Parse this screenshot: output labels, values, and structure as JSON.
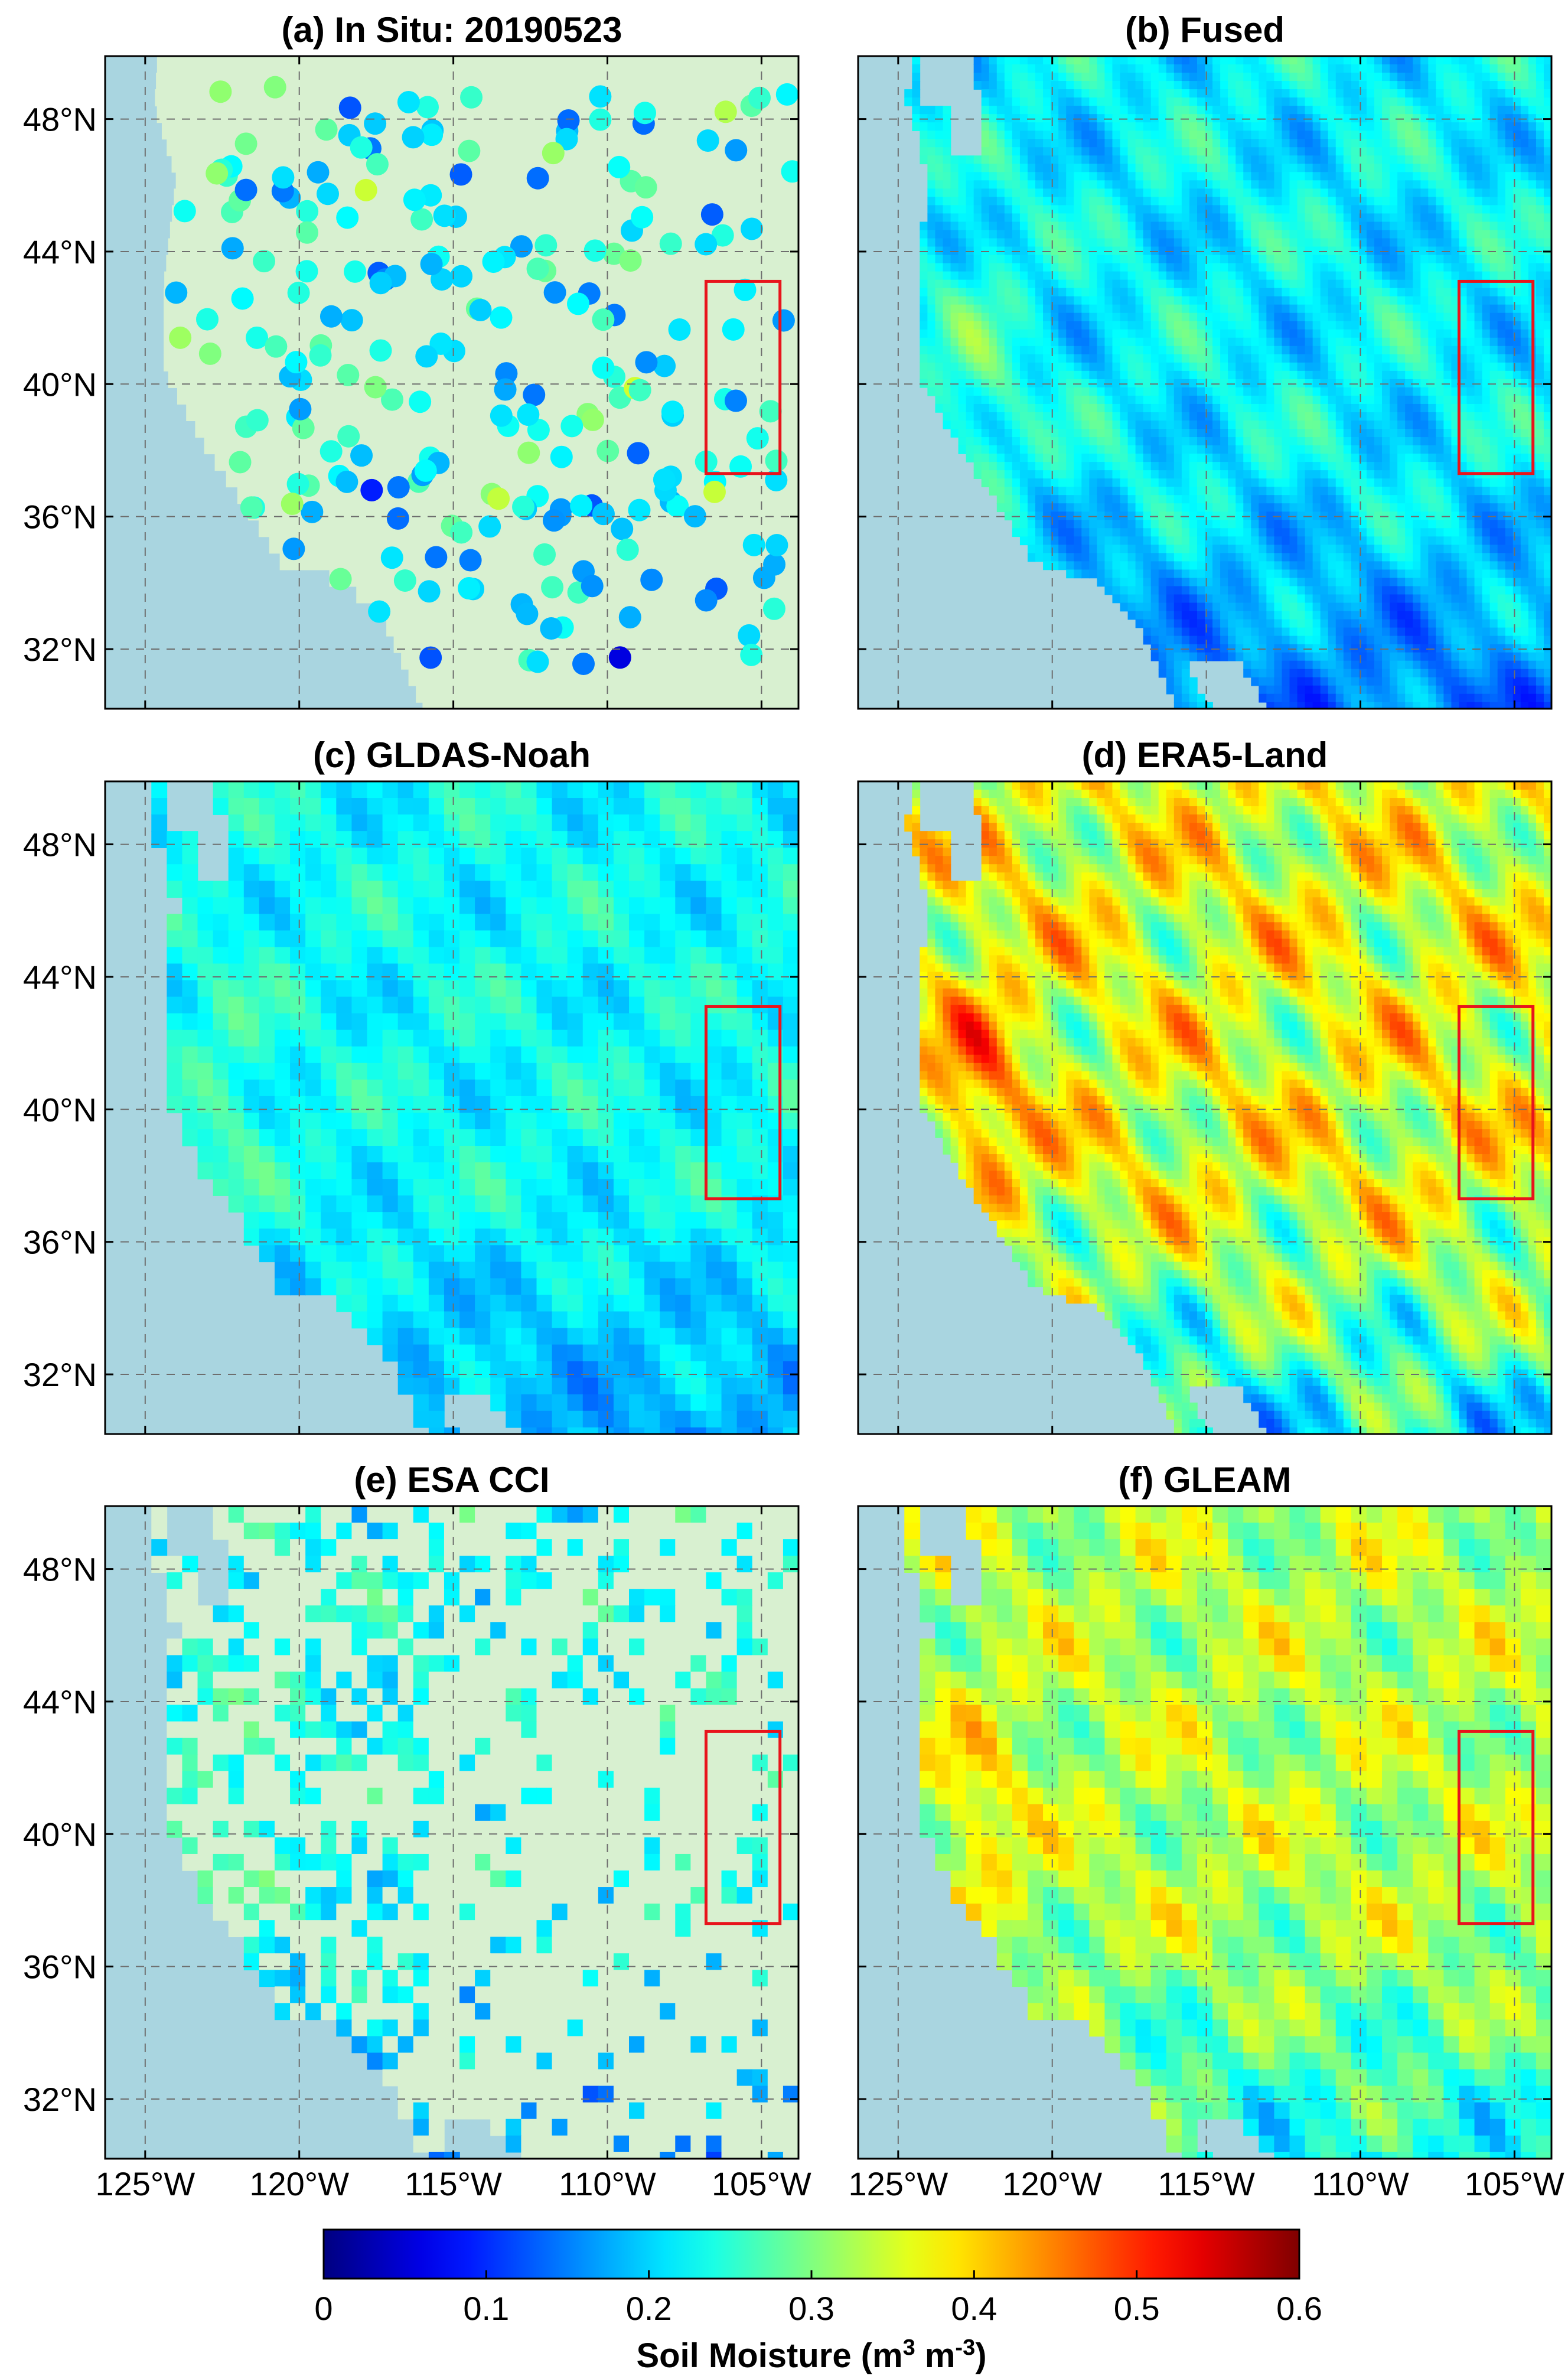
{
  "figure": {
    "colorbar": {
      "label": "Soil Moisture (m",
      "label_sup1": "3",
      "label_mid": " m",
      "label_sup2": "-3",
      "label_end": ")",
      "ticks": [
        "0",
        "0.1",
        "0.2",
        "0.3",
        "0.4",
        "0.5",
        "0.6"
      ],
      "range": [
        0,
        0.6
      ],
      "colormap": "jet"
    },
    "lat_ticks": [
      {
        "value": 48,
        "label": "48°N"
      },
      {
        "value": 44,
        "label": "44°N"
      },
      {
        "value": 40,
        "label": "40°N"
      },
      {
        "value": 36,
        "label": "36°N"
      },
      {
        "value": 32,
        "label": "32°N"
      }
    ],
    "lon_ticks": [
      {
        "value": -125,
        "label": "125°W"
      },
      {
        "value": -120,
        "label": "120°W"
      },
      {
        "value": -115,
        "label": "115°W"
      },
      {
        "value": -110,
        "label": "110°W"
      },
      {
        "value": -105,
        "label": "105°W"
      }
    ],
    "extent": {
      "lon": [
        -126.3,
        -103.8
      ],
      "lat": [
        30.2,
        49.9
      ]
    },
    "highlight_box": {
      "lon": [
        -106.8,
        -104.4
      ],
      "lat": [
        37.3,
        43.1
      ],
      "color": "#e8141c"
    },
    "colors": {
      "ocean": "#a9d5e0",
      "land_nodata": "#d8f0d0",
      "grid": "#6e6e6e",
      "box": "#e8141c"
    },
    "panels": [
      {
        "id": "a",
        "title": "(a) In Situ: 20190523",
        "kind": "stations",
        "base": 0.23,
        "spread": 0.09
      },
      {
        "id": "b",
        "title": "(b) Fused",
        "kind": "smooth",
        "base": 0.22,
        "spread": 0.08
      },
      {
        "id": "c",
        "title": "(c) GLDAS-Noah",
        "kind": "coarse",
        "base": 0.23,
        "spread": 0.06
      },
      {
        "id": "d",
        "title": "(d) ERA5-Land",
        "kind": "smooth",
        "base": 0.36,
        "spread": 0.14
      },
      {
        "id": "e",
        "title": "(e) ESA CCI",
        "kind": "sparse",
        "base": 0.23,
        "spread": 0.07
      },
      {
        "id": "f",
        "title": "(f) GLEAM",
        "kind": "coarse",
        "base": 0.33,
        "spread": 0.1
      }
    ]
  }
}
